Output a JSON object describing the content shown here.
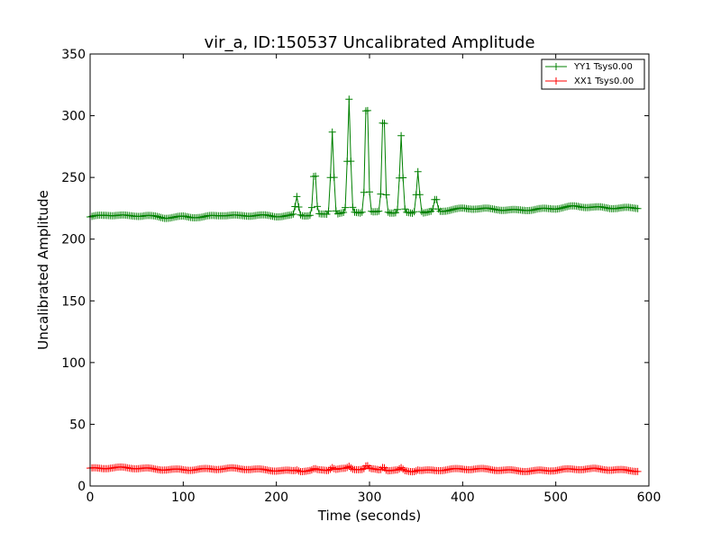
{
  "chart_data": {
    "type": "line",
    "title": "vir_a, ID:150537 Uncalibrated Amplitude",
    "xlabel": "Time (seconds)",
    "ylabel": "Uncalibrated Amplitude",
    "xlim": [
      0,
      600
    ],
    "ylim": [
      0,
      350
    ],
    "xticks": [
      0,
      100,
      200,
      300,
      400,
      500,
      600
    ],
    "yticks": [
      0,
      50,
      100,
      150,
      200,
      250,
      300,
      350
    ],
    "grid": false,
    "legend_position": "top-right",
    "series": [
      {
        "name": "YY1 Tsys0.00",
        "color": "#008000",
        "marker": "+",
        "x_start": 0,
        "x_end": 588,
        "x_step": 2,
        "baseline": [
          [
            0,
            218
          ],
          [
            20,
            219
          ],
          [
            40,
            218
          ],
          [
            60,
            219
          ],
          [
            80,
            218
          ],
          [
            100,
            219
          ],
          [
            120,
            218
          ],
          [
            140,
            219
          ],
          [
            160,
            218
          ],
          [
            180,
            219
          ],
          [
            200,
            219
          ],
          [
            220,
            220
          ],
          [
            240,
            220
          ],
          [
            260,
            220
          ],
          [
            280,
            221
          ],
          [
            300,
            221
          ],
          [
            320,
            222
          ],
          [
            340,
            222
          ],
          [
            360,
            222
          ],
          [
            380,
            223
          ],
          [
            400,
            224
          ],
          [
            420,
            224
          ],
          [
            440,
            224
          ],
          [
            460,
            224
          ],
          [
            480,
            225
          ],
          [
            500,
            225
          ],
          [
            520,
            226
          ],
          [
            540,
            225
          ],
          [
            560,
            225
          ],
          [
            588,
            226
          ]
        ],
        "spikes": [
          {
            "x": 222,
            "peak": 235
          },
          {
            "x": 241,
            "peak": 258
          },
          {
            "x": 260,
            "peak": 287
          },
          {
            "x": 278,
            "peak": 312
          },
          {
            "x": 297,
            "peak": 322
          },
          {
            "x": 315,
            "peak": 310
          },
          {
            "x": 334,
            "peak": 284
          },
          {
            "x": 352,
            "peak": 256
          },
          {
            "x": 371,
            "peak": 234
          }
        ]
      },
      {
        "name": "XX1 Tsys0.00",
        "color": "#ff0000",
        "marker": "+",
        "x_start": 0,
        "x_end": 588,
        "x_step": 2,
        "baseline": [
          [
            0,
            14
          ],
          [
            100,
            14
          ],
          [
            180,
            13
          ],
          [
            300,
            13
          ],
          [
            400,
            13
          ],
          [
            500,
            13
          ],
          [
            588,
            13
          ]
        ],
        "spikes": [
          {
            "x": 222,
            "peak": 14
          },
          {
            "x": 241,
            "peak": 14
          },
          {
            "x": 260,
            "peak": 15
          },
          {
            "x": 278,
            "peak": 15
          },
          {
            "x": 297,
            "peak": 16
          },
          {
            "x": 315,
            "peak": 16
          },
          {
            "x": 334,
            "peak": 15
          },
          {
            "x": 352,
            "peak": 14
          }
        ]
      }
    ]
  }
}
